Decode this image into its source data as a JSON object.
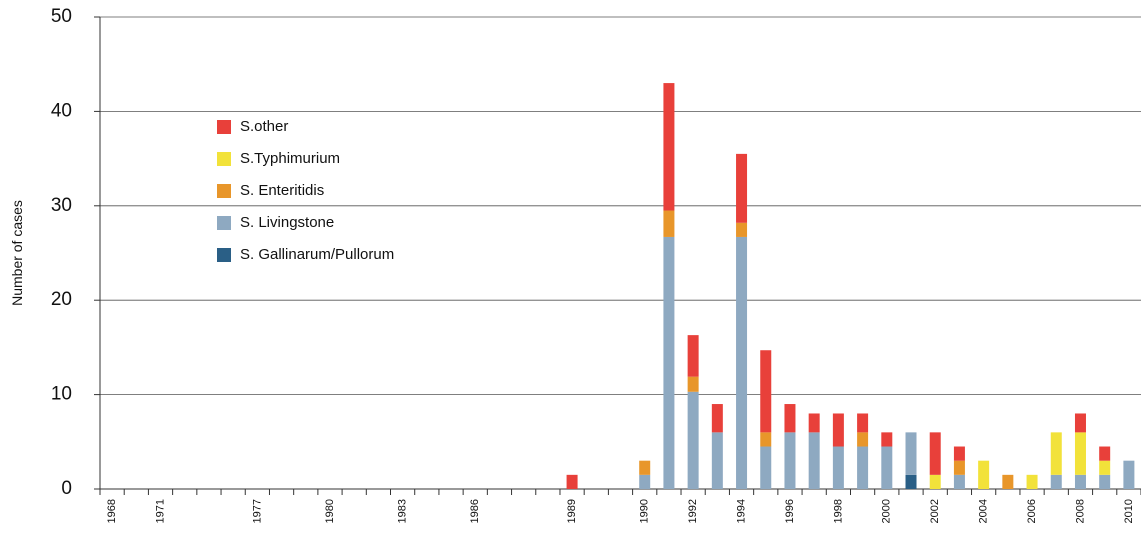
{
  "chart_data": {
    "type": "stacked_bar",
    "y_label": "Number of cases",
    "ylim": [
      0,
      50
    ],
    "yticks": [
      0,
      10,
      20,
      30,
      40,
      50
    ],
    "grid": true,
    "categories": [
      "1968",
      null,
      "1971",
      null,
      null,
      null,
      "1977",
      null,
      null,
      "1980",
      null,
      null,
      "1983",
      null,
      null,
      "1986",
      null,
      null,
      null,
      "1989",
      null,
      null,
      "1990",
      null,
      "1992",
      null,
      "1994",
      null,
      "1996",
      null,
      "1998",
      null,
      "2000",
      null,
      "2002",
      null,
      "2004",
      null,
      "2006",
      null,
      "2008",
      null,
      "2010"
    ],
    "series": [
      {
        "name": "S. Gallinarum/Pullorum",
        "color": "#2a5f86",
        "values": [
          null,
          null,
          null,
          null,
          null,
          null,
          null,
          null,
          null,
          null,
          null,
          null,
          null,
          null,
          null,
          null,
          null,
          null,
          null,
          null,
          null,
          null,
          null,
          null,
          null,
          null,
          null,
          null,
          null,
          null,
          null,
          null,
          null,
          1.5,
          null,
          null,
          null,
          null,
          null,
          null,
          null,
          null,
          null
        ]
      },
      {
        "name": "S. Livingstone",
        "color": "#8ea9c1",
        "values": [
          null,
          null,
          null,
          null,
          null,
          null,
          null,
          null,
          null,
          null,
          null,
          null,
          null,
          null,
          null,
          null,
          null,
          null,
          null,
          null,
          null,
          null,
          1.5,
          26.7,
          10.3,
          6,
          26.7,
          4.5,
          6,
          6,
          4.5,
          4.5,
          4.5,
          4.5,
          null,
          1.5,
          null,
          null,
          null,
          1.5,
          1.5,
          1.5,
          3
        ]
      },
      {
        "name": "S. Enteritidis",
        "color": "#e8962a",
        "values": [
          null,
          null,
          null,
          null,
          null,
          null,
          null,
          null,
          null,
          null,
          null,
          null,
          null,
          null,
          null,
          null,
          null,
          null,
          null,
          null,
          null,
          null,
          1.5,
          2.8,
          1.6,
          null,
          1.5,
          1.5,
          null,
          null,
          null,
          1.5,
          null,
          null,
          null,
          1.5,
          null,
          1.5,
          null,
          null,
          null,
          null,
          null
        ]
      },
      {
        "name": "S.Typhimurium",
        "color": "#f2e23a",
        "values": [
          null,
          null,
          null,
          null,
          null,
          null,
          null,
          null,
          null,
          null,
          null,
          null,
          null,
          null,
          null,
          null,
          null,
          null,
          null,
          null,
          null,
          null,
          null,
          null,
          null,
          null,
          null,
          null,
          null,
          null,
          null,
          null,
          null,
          null,
          1.5,
          null,
          3,
          null,
          1.5,
          4.5,
          4.5,
          1.5,
          null
        ]
      },
      {
        "name": "S.other",
        "color": "#e8403a",
        "values": [
          null,
          null,
          null,
          null,
          null,
          null,
          null,
          null,
          null,
          null,
          null,
          null,
          null,
          null,
          null,
          null,
          null,
          null,
          null,
          1.5,
          null,
          null,
          null,
          13.5,
          4.4,
          3,
          7.3,
          8.7,
          3,
          2,
          3.5,
          2,
          1.5,
          null,
          4.5,
          1.5,
          null,
          null,
          null,
          null,
          2,
          1.5,
          null
        ]
      }
    ]
  }
}
